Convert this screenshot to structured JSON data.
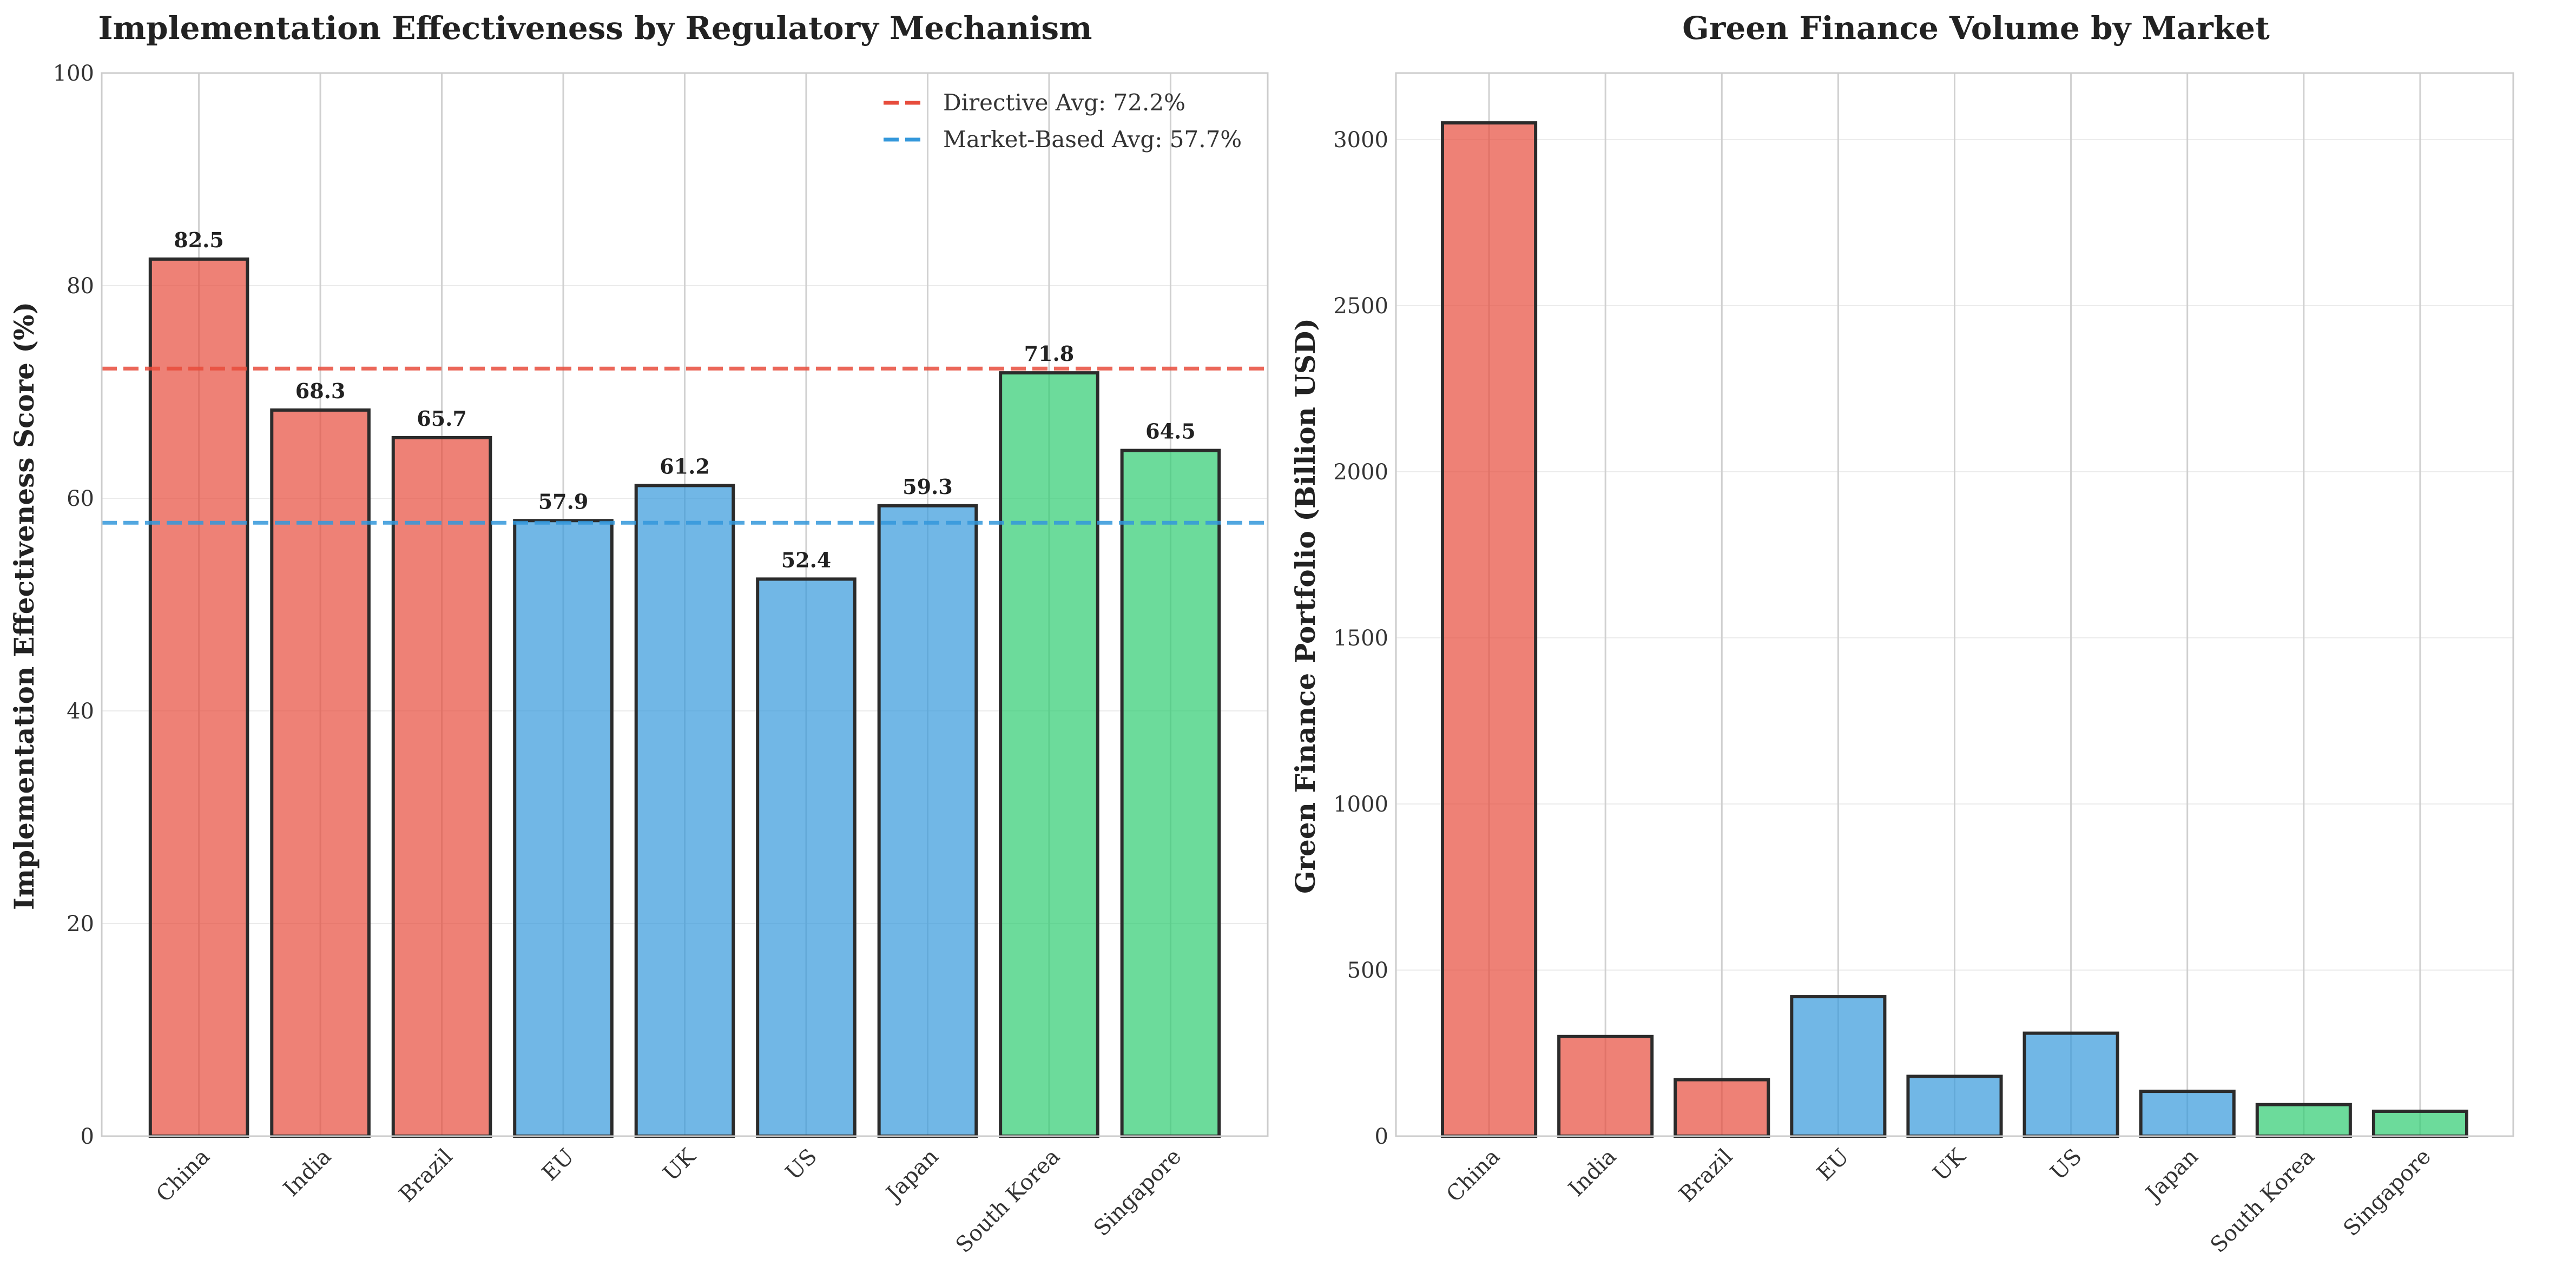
{
  "colors": {
    "directive": "#e74c3c",
    "market_based": "#3498db",
    "hybrid": "#2ecc71"
  },
  "chart_data": [
    {
      "type": "bar",
      "title": "Implementation Effectiveness by Regulatory Mechanism",
      "xlabel": "",
      "ylabel": "Implementation Effectiveness Score (%)",
      "categories": [
        "China",
        "India",
        "Brazil",
        "EU",
        "UK",
        "US",
        "Japan",
        "South Korea",
        "Singapore"
      ],
      "values": [
        82.5,
        68.3,
        65.7,
        57.9,
        61.2,
        52.4,
        59.3,
        71.8,
        64.5
      ],
      "value_labels": [
        "82.5",
        "68.3",
        "65.7",
        "57.9",
        "61.2",
        "52.4",
        "59.3",
        "71.8",
        "64.5"
      ],
      "bar_groups": [
        "directive",
        "directive",
        "directive",
        "market_based",
        "market_based",
        "market_based",
        "market_based",
        "hybrid",
        "hybrid"
      ],
      "ylim": [
        0,
        100
      ],
      "yticks": [
        0,
        20,
        40,
        60,
        80,
        100
      ],
      "ytick_labels": [
        "0",
        "20",
        "40",
        "60",
        "80",
        "100"
      ],
      "reference_lines": [
        {
          "label": "Directive Avg: 72.2%",
          "value": 72.2,
          "group": "directive"
        },
        {
          "label": "Market-Based Avg: 57.7%",
          "value": 57.7,
          "group": "market_based"
        }
      ],
      "legend_position": "top-right",
      "grid": true
    },
    {
      "type": "bar",
      "title": "Green Finance Volume by Market",
      "xlabel": "",
      "ylabel": "Green Finance Portfolio (Billion USD)",
      "categories": [
        "China",
        "India",
        "Brazil",
        "EU",
        "UK",
        "US",
        "Japan",
        "South Korea",
        "Singapore"
      ],
      "values": [
        3050,
        300,
        170,
        420,
        180,
        310,
        135,
        95,
        75
      ],
      "bar_groups": [
        "directive",
        "directive",
        "directive",
        "market_based",
        "market_based",
        "market_based",
        "market_based",
        "hybrid",
        "hybrid"
      ],
      "ylim": [
        0,
        3200
      ],
      "yticks": [
        0,
        500,
        1000,
        1500,
        2000,
        2500,
        3000
      ],
      "ytick_labels": [
        "0",
        "500",
        "1000",
        "1500",
        "2000",
        "2500",
        "3000"
      ],
      "grid": true
    }
  ]
}
